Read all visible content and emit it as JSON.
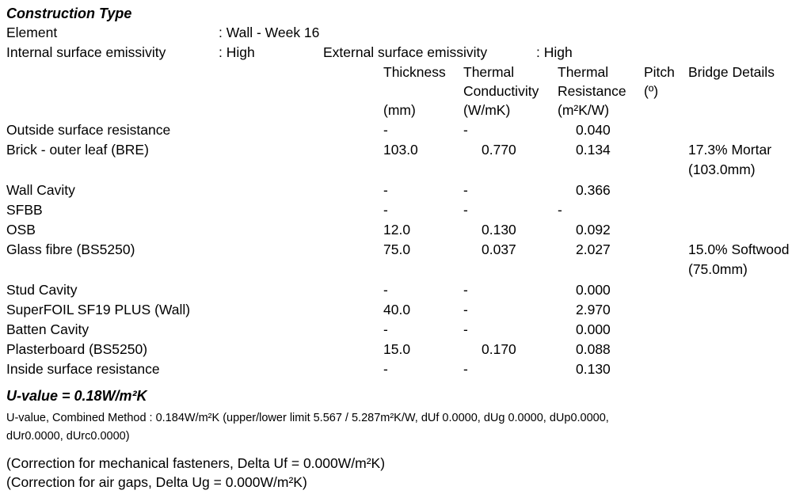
{
  "title": "Construction Type",
  "element": {
    "label": "Element",
    "value": ": Wall - Week 16"
  },
  "internal_emissivity": {
    "label": "Internal surface emissivity",
    "value": ": High"
  },
  "external_emissivity": {
    "label": "External surface emissivity",
    "value": ": High"
  },
  "columns": {
    "thickness": [
      "Thickness",
      "",
      "(mm)"
    ],
    "conductivity": [
      "Thermal",
      "Conductivity",
      "(W/mK)"
    ],
    "resistance": [
      "Thermal",
      "Resistance",
      "(m²K/W)"
    ],
    "pitch": [
      "Pitch",
      "(º)"
    ],
    "bridge": [
      "Bridge Details"
    ]
  },
  "rows": [
    {
      "name": "Outside surface resistance",
      "thickness": "-",
      "conductivity": "-",
      "resistance": "0.040",
      "bridge": [
        "",
        ""
      ]
    },
    {
      "name": "Brick - outer leaf (BRE)",
      "thickness": "103.0",
      "conductivity": "0.770",
      "resistance": "0.134",
      "bridge": [
        "17.3% Mortar",
        "(103.0mm)"
      ]
    },
    {
      "name": "Wall Cavity",
      "thickness": "-",
      "conductivity": "-",
      "resistance": "0.366",
      "bridge": [
        "",
        ""
      ]
    },
    {
      "name": "SFBB",
      "thickness": "-",
      "conductivity": "-",
      "resistance": "-",
      "bridge": [
        "",
        ""
      ]
    },
    {
      "name": "OSB",
      "thickness": "12.0",
      "conductivity": "0.130",
      "resistance": "0.092",
      "bridge": [
        "",
        ""
      ]
    },
    {
      "name": "Glass fibre (BS5250)",
      "thickness": "75.0",
      "conductivity": "0.037",
      "resistance": "2.027",
      "bridge": [
        "15.0% Softwood",
        "(75.0mm)"
      ]
    },
    {
      "name": "Stud Cavity",
      "thickness": "-",
      "conductivity": "-",
      "resistance": "0.000",
      "bridge": [
        "",
        ""
      ]
    },
    {
      "name": "SuperFOIL SF19 PLUS (Wall)",
      "thickness": "40.0",
      "conductivity": "-",
      "resistance": "2.970",
      "bridge": [
        "",
        ""
      ]
    },
    {
      "name": "Batten Cavity",
      "thickness": "-",
      "conductivity": "-",
      "resistance": "0.000",
      "bridge": [
        "",
        ""
      ]
    },
    {
      "name": "Plasterboard (BS5250)",
      "thickness": "15.0",
      "conductivity": "0.170",
      "resistance": "0.088",
      "bridge": [
        "",
        ""
      ]
    },
    {
      "name": "Inside surface resistance",
      "thickness": "-",
      "conductivity": "-",
      "resistance": "0.130",
      "bridge": [
        "",
        ""
      ]
    }
  ],
  "uvalue": {
    "heading": "U-value = 0.18W/m²K",
    "combined_line1": "U-value, Combined Method  : 0.184W/m²K (upper/lower limit 5.567 / 5.287m²K/W, dUf 0.0000, dUg 0.0000, dUp0.0000,",
    "combined_line2": "dUr0.0000,  dUrc0.0000)",
    "correction_fasteners": "(Correction for mechanical fasteners, Delta Uf = 0.000W/m²K)",
    "correction_airgaps": "(Correction for air gaps, Delta Ug = 0.000W/m²K)"
  }
}
